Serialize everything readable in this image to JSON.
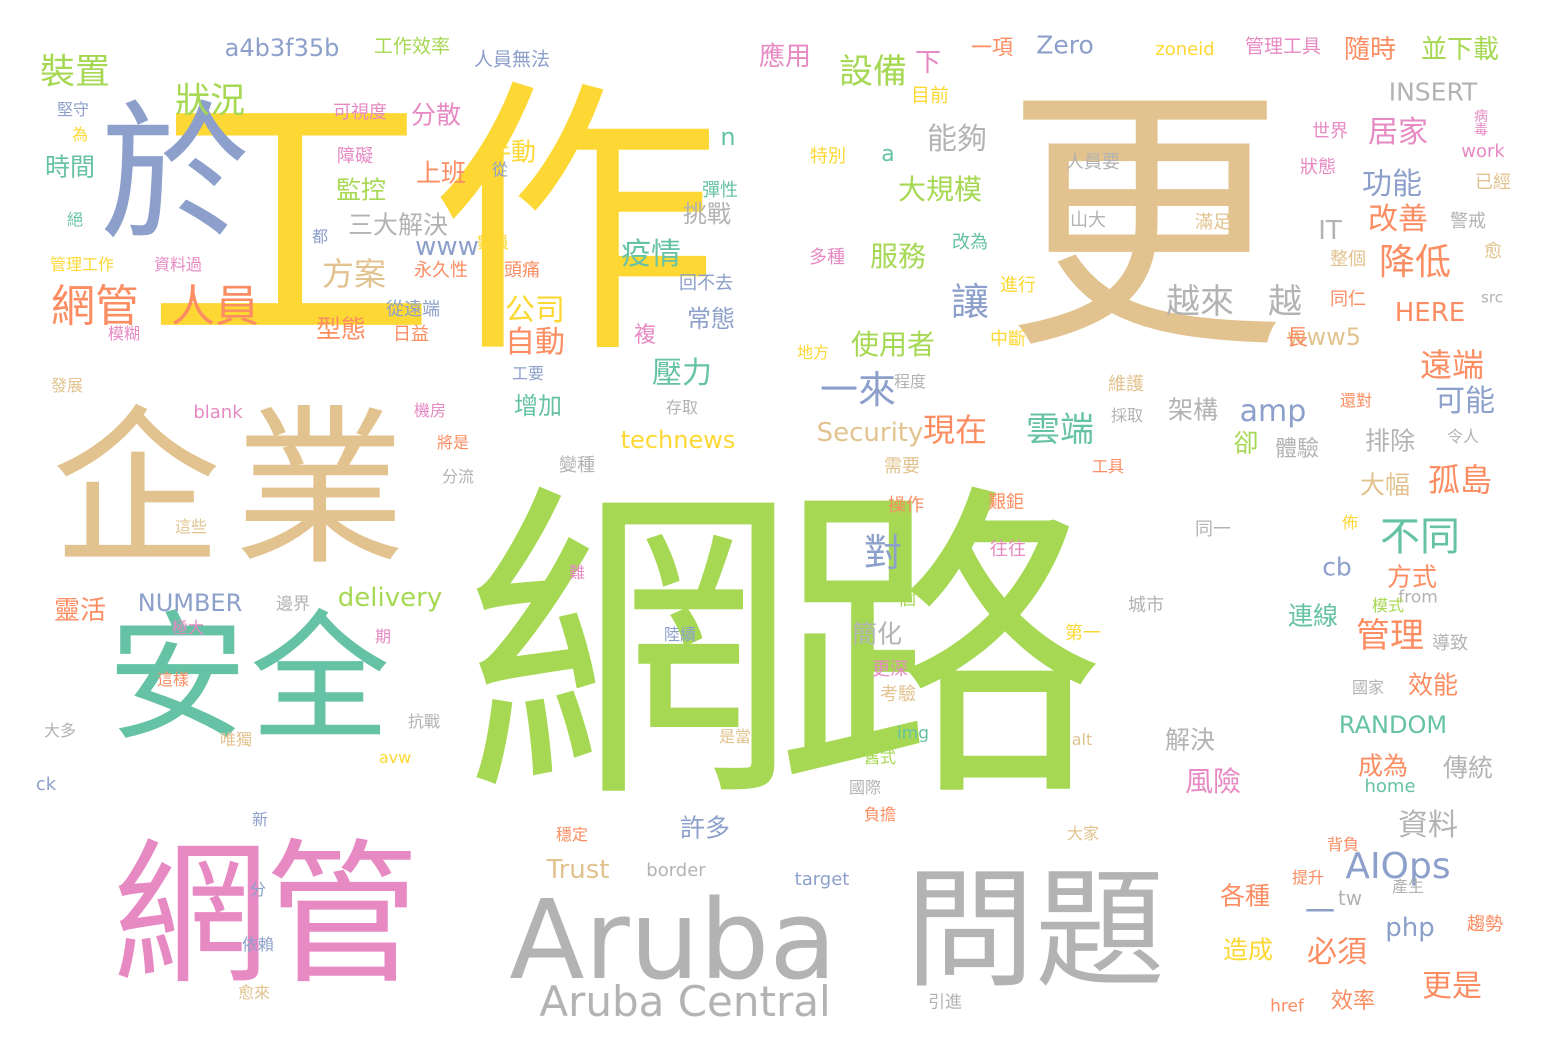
{
  "palette": {
    "yellow": "#fdd835",
    "tan": "#e2c38f",
    "green": "#a6d854",
    "teal": "#66c2a5",
    "pink": "#e78ac3",
    "gray": "#b3b3b3",
    "blue": "#8da0cb",
    "orange": "#fc8d62",
    "background": "#ffffff"
  },
  "words": [
    {
      "text": "網路",
      "color": "green",
      "orient": "h",
      "icon": null
    },
    {
      "text": "工作",
      "color": "yellow",
      "orient": "h"
    },
    {
      "text": "更",
      "color": "tan",
      "orient": "h"
    },
    {
      "text": "企業",
      "color": "tan",
      "orient": "h"
    },
    {
      "text": "安全",
      "color": "teal",
      "orient": "h"
    },
    {
      "text": "網管",
      "color": "pink",
      "orient": "h"
    },
    {
      "text": "Aruba",
      "color": "gray",
      "orient": "h"
    },
    {
      "text": "問題",
      "color": "gray",
      "orient": "h"
    },
    {
      "text": "於",
      "color": "blue",
      "orient": "h"
    },
    {
      "text": "Aruba Central",
      "color": "gray",
      "orient": "h"
    },
    {
      "text": "一",
      "color": "blue",
      "orient": "h"
    },
    {
      "text": "AIOps",
      "color": "blue",
      "orient": "h"
    },
    {
      "text": "網管",
      "color": "orange",
      "orient": "h"
    },
    {
      "text": "人員",
      "color": "orange",
      "orient": "h"
    },
    {
      "text": "裝置",
      "color": "green",
      "orient": "h"
    },
    {
      "text": "狀況",
      "color": "green",
      "orient": "h"
    },
    {
      "text": "a4b3f35b",
      "color": "blue",
      "orient": "h"
    },
    {
      "text": "工作效率",
      "color": "green",
      "orient": "h"
    },
    {
      "text": "人員無法",
      "color": "blue",
      "orient": "h"
    },
    {
      "text": "應用",
      "color": "pink",
      "orient": "h"
    },
    {
      "text": "設備",
      "color": "green",
      "orient": "h"
    },
    {
      "text": "下",
      "color": "pink",
      "orient": "h"
    },
    {
      "text": "一項",
      "color": "orange",
      "orient": "h"
    },
    {
      "text": "Zero",
      "color": "blue",
      "orient": "h"
    },
    {
      "text": "zoneid",
      "color": "yellow",
      "orient": "h"
    },
    {
      "text": "管理工具",
      "color": "pink",
      "orient": "h"
    },
    {
      "text": "隨時",
      "color": "orange",
      "orient": "h"
    },
    {
      "text": "並下載",
      "color": "green",
      "orient": "h"
    },
    {
      "text": "INSERT",
      "color": "gray",
      "orient": "h"
    },
    {
      "text": "目前",
      "color": "yellow",
      "orient": "h"
    },
    {
      "text": "能夠",
      "color": "gray",
      "orient": "h"
    },
    {
      "text": "居家",
      "color": "pink",
      "orient": "h"
    },
    {
      "text": "功能",
      "color": "blue",
      "orient": "h"
    },
    {
      "text": "病毒",
      "color": "pink",
      "orient": "v"
    },
    {
      "text": "work",
      "color": "pink",
      "orient": "h"
    },
    {
      "text": "已經",
      "color": "tan",
      "orient": "h"
    },
    {
      "text": "世界",
      "color": "pink",
      "orient": "h"
    },
    {
      "text": "狀態",
      "color": "pink",
      "orient": "h"
    },
    {
      "text": "人員要",
      "color": "gray",
      "orient": "h"
    },
    {
      "text": "山大",
      "color": "gray",
      "orient": "h"
    },
    {
      "text": "滿足",
      "color": "tan",
      "orient": "h"
    },
    {
      "text": "警戒",
      "color": "gray",
      "orient": "h"
    },
    {
      "text": "愈",
      "color": "tan",
      "orient": "h"
    },
    {
      "text": "整個",
      "color": "tan",
      "orient": "h"
    },
    {
      "text": "同仁",
      "color": "orange",
      "orient": "h"
    },
    {
      "text": "src",
      "color": "gray",
      "orient": "h"
    },
    {
      "text": "HERE",
      "color": "orange",
      "orient": "h"
    },
    {
      "text": "www5",
      "color": "tan",
      "orient": "h"
    },
    {
      "text": "遠端",
      "color": "orange",
      "orient": "h"
    },
    {
      "text": "可能",
      "color": "blue",
      "orient": "h"
    },
    {
      "text": "降低",
      "color": "orange",
      "orient": "h"
    },
    {
      "text": "改善",
      "color": "orange",
      "orient": "h"
    },
    {
      "text": "IT",
      "color": "gray",
      "orient": "h"
    },
    {
      "text": "越來",
      "color": "gray",
      "orient": "h"
    },
    {
      "text": "越",
      "color": "gray",
      "orient": "h"
    },
    {
      "text": "讓",
      "color": "blue",
      "orient": "h"
    },
    {
      "text": "大規模",
      "color": "green",
      "orient": "h"
    },
    {
      "text": "服務",
      "color": "green",
      "orient": "h"
    },
    {
      "text": "使用者",
      "color": "green",
      "orient": "h"
    },
    {
      "text": "一來",
      "color": "blue",
      "orient": "h"
    },
    {
      "text": "現在",
      "color": "orange",
      "orient": "h"
    },
    {
      "text": "雲端",
      "color": "teal",
      "orient": "h"
    },
    {
      "text": "amp",
      "color": "blue",
      "orient": "h"
    },
    {
      "text": "架構",
      "color": "gray",
      "orient": "h"
    },
    {
      "text": "卻",
      "color": "green",
      "orient": "h"
    },
    {
      "text": "體驗",
      "color": "gray",
      "orient": "h"
    },
    {
      "text": "排除",
      "color": "gray",
      "orient": "h"
    },
    {
      "text": "孤島",
      "color": "orange",
      "orient": "h"
    },
    {
      "text": "大幅",
      "color": "tan",
      "orient": "h"
    },
    {
      "text": "不同",
      "color": "teal",
      "orient": "h"
    },
    {
      "text": "對",
      "color": "blue",
      "orient": "h"
    },
    {
      "text": "方式",
      "color": "orange",
      "orient": "h"
    },
    {
      "text": "管理",
      "color": "orange",
      "orient": "h"
    },
    {
      "text": "連線",
      "color": "teal",
      "orient": "h"
    },
    {
      "text": "cb",
      "color": "blue",
      "orient": "h"
    },
    {
      "text": "簡化",
      "color": "gray",
      "orient": "h"
    },
    {
      "text": "一個",
      "color": "green",
      "orient": "h"
    },
    {
      "text": "第一",
      "color": "yellow",
      "orient": "h"
    },
    {
      "text": "from",
      "color": "gray",
      "orient": "h"
    },
    {
      "text": "模式",
      "color": "green",
      "orient": "h"
    },
    {
      "text": "導致",
      "color": "gray",
      "orient": "h"
    },
    {
      "text": "城市",
      "color": "gray",
      "orient": "h"
    },
    {
      "text": "同一",
      "color": "gray",
      "orient": "h"
    },
    {
      "text": "更深",
      "color": "pink",
      "orient": "h"
    },
    {
      "text": "考驗",
      "color": "tan",
      "orient": "h"
    },
    {
      "text": "效能",
      "color": "orange",
      "orient": "h"
    },
    {
      "text": "國家",
      "color": "gray",
      "orient": "h"
    },
    {
      "text": "RANDOM",
      "color": "teal",
      "orient": "h"
    },
    {
      "text": "解決",
      "color": "gray",
      "orient": "h"
    },
    {
      "text": "傳統",
      "color": "gray",
      "orient": "h"
    },
    {
      "text": "成為",
      "color": "orange",
      "orient": "h"
    },
    {
      "text": "風險",
      "color": "pink",
      "orient": "h"
    },
    {
      "text": "資料",
      "color": "gray",
      "orient": "h"
    },
    {
      "text": "home",
      "color": "teal",
      "orient": "h"
    },
    {
      "text": "tw",
      "color": "gray",
      "orient": "h"
    },
    {
      "text": "各種",
      "color": "orange",
      "orient": "h"
    },
    {
      "text": "php",
      "color": "blue",
      "orient": "h"
    },
    {
      "text": "必須",
      "color": "orange",
      "orient": "h"
    },
    {
      "text": "造成",
      "color": "yellow",
      "orient": "h"
    },
    {
      "text": "更是",
      "color": "orange",
      "orient": "h"
    },
    {
      "text": "效率",
      "color": "orange",
      "orient": "h"
    },
    {
      "text": "href",
      "color": "orange",
      "orient": "h"
    },
    {
      "text": "趨勢",
      "color": "orange",
      "orient": "h"
    },
    {
      "text": "產生",
      "color": "gray",
      "orient": "h"
    },
    {
      "text": "背負",
      "color": "orange",
      "orient": "h"
    },
    {
      "text": "提升",
      "color": "orange",
      "orient": "h"
    },
    {
      "text": "引進",
      "color": "gray",
      "orient": "h"
    },
    {
      "text": "Security",
      "color": "tan",
      "orient": "h"
    },
    {
      "text": "technews",
      "color": "yellow",
      "orient": "h"
    },
    {
      "text": "壓力",
      "color": "teal",
      "orient": "h"
    },
    {
      "text": "增加",
      "color": "teal",
      "orient": "h"
    },
    {
      "text": "自動",
      "color": "orange",
      "orient": "h"
    },
    {
      "text": "公司",
      "color": "yellow",
      "orient": "h"
    },
    {
      "text": "疫情",
      "color": "teal",
      "orient": "h"
    },
    {
      "text": "回不去",
      "color": "blue",
      "orient": "h"
    },
    {
      "text": "常態",
      "color": "blue",
      "orient": "h"
    },
    {
      "text": "挑戰",
      "color": "gray",
      "orient": "h"
    },
    {
      "text": "複",
      "color": "pink",
      "orient": "h"
    },
    {
      "text": "長",
      "color": "orange",
      "orient": "h"
    },
    {
      "text": "n",
      "color": "teal",
      "orient": "h"
    },
    {
      "text": "a",
      "color": "teal",
      "orient": "h"
    },
    {
      "text": "手動",
      "color": "yellow",
      "orient": "h"
    },
    {
      "text": "彈性",
      "color": "teal",
      "orient": "h"
    },
    {
      "text": "特別",
      "color": "yellow",
      "orient": "h"
    },
    {
      "text": "多種",
      "color": "pink",
      "orient": "h"
    },
    {
      "text": "改為",
      "color": "teal",
      "orient": "h"
    },
    {
      "text": "進行",
      "color": "yellow",
      "orient": "h"
    },
    {
      "text": "中斷",
      "color": "yellow",
      "orient": "h"
    },
    {
      "text": "地方",
      "color": "yellow",
      "orient": "h"
    },
    {
      "text": "程度",
      "color": "gray",
      "orient": "h"
    },
    {
      "text": "維護",
      "color": "tan",
      "orient": "h"
    },
    {
      "text": "採取",
      "color": "gray",
      "orient": "h"
    },
    {
      "text": "還對",
      "color": "orange",
      "orient": "h"
    },
    {
      "text": "令人",
      "color": "gray",
      "orient": "h"
    },
    {
      "text": "工具",
      "color": "orange",
      "orient": "h"
    },
    {
      "text": "存取",
      "color": "gray",
      "orient": "h"
    },
    {
      "text": "需要",
      "color": "tan",
      "orient": "h"
    },
    {
      "text": "操作",
      "color": "orange",
      "orient": "h"
    },
    {
      "text": "艱鉅",
      "color": "orange",
      "orient": "h"
    },
    {
      "text": "往往",
      "color": "pink",
      "orient": "h"
    },
    {
      "text": "佈",
      "color": "yellow",
      "orient": "h"
    },
    {
      "text": "變種",
      "color": "gray",
      "orient": "h"
    },
    {
      "text": "分散",
      "color": "pink",
      "orient": "h"
    },
    {
      "text": "上班",
      "color": "orange",
      "orient": "h"
    },
    {
      "text": "監控",
      "color": "green",
      "orient": "h"
    },
    {
      "text": "三大解決",
      "color": "gray",
      "orient": "h"
    },
    {
      "text": "方案",
      "color": "tan",
      "orient": "h"
    },
    {
      "text": "www",
      "color": "blue",
      "orient": "h"
    },
    {
      "text": "型態",
      "color": "orange",
      "orient": "h"
    },
    {
      "text": "日益",
      "color": "orange",
      "orient": "h"
    },
    {
      "text": "從遠端",
      "color": "blue",
      "orient": "h"
    },
    {
      "text": "永久性",
      "color": "orange",
      "orient": "h"
    },
    {
      "text": "頭痛",
      "color": "orange",
      "orient": "h"
    },
    {
      "text": "數員",
      "color": "yellow",
      "orient": "h"
    },
    {
      "text": "都",
      "color": "blue",
      "orient": "h"
    },
    {
      "text": "時間",
      "color": "teal",
      "orient": "h"
    },
    {
      "text": "可視度",
      "color": "pink",
      "orient": "h"
    },
    {
      "text": "障礙",
      "color": "pink",
      "orient": "h"
    },
    {
      "text": "從",
      "color": "blue",
      "orient": "h"
    },
    {
      "text": "堅守",
      "color": "blue",
      "orient": "h"
    },
    {
      "text": "為",
      "color": "yellow",
      "orient": "h"
    },
    {
      "text": "絕",
      "color": "teal",
      "orient": "h"
    },
    {
      "text": "管理工作",
      "color": "yellow",
      "orient": "h"
    },
    {
      "text": "資料過",
      "color": "pink",
      "orient": "h"
    },
    {
      "text": "模糊",
      "color": "pink",
      "orient": "h"
    },
    {
      "text": "工要",
      "color": "blue",
      "orient": "h"
    },
    {
      "text": "發展",
      "color": "tan",
      "orient": "h"
    },
    {
      "text": "blank",
      "color": "pink",
      "orient": "h"
    },
    {
      "text": "機房",
      "color": "pink",
      "orient": "h"
    },
    {
      "text": "將是",
      "color": "orange",
      "orient": "h"
    },
    {
      "text": "分流",
      "color": "gray",
      "orient": "h"
    },
    {
      "text": "這些",
      "color": "tan",
      "orient": "h"
    },
    {
      "text": "delivery",
      "color": "green",
      "orient": "h"
    },
    {
      "text": "NUMBER",
      "color": "blue",
      "orient": "h"
    },
    {
      "text": "靈活",
      "color": "orange",
      "orient": "h"
    },
    {
      "text": "邊界",
      "color": "gray",
      "orient": "h"
    },
    {
      "text": "期",
      "color": "pink",
      "orient": "h"
    },
    {
      "text": "極大",
      "color": "pink",
      "orient": "h"
    },
    {
      "text": "難",
      "color": "pink",
      "orient": "h"
    },
    {
      "text": "陸續",
      "color": "blue",
      "orient": "h"
    },
    {
      "text": "這樣",
      "color": "orange",
      "orient": "h"
    },
    {
      "text": "抗戰",
      "color": "gray",
      "orient": "h"
    },
    {
      "text": "大多",
      "color": "gray",
      "orient": "h"
    },
    {
      "text": "唯獨",
      "color": "tan",
      "orient": "h"
    },
    {
      "text": "avw",
      "color": "yellow",
      "orient": "h"
    },
    {
      "text": "img",
      "color": "teal",
      "orient": "h"
    },
    {
      "text": "是當",
      "color": "tan",
      "orient": "h"
    },
    {
      "text": "舊式",
      "color": "green",
      "orient": "h"
    },
    {
      "text": "alt",
      "color": "tan",
      "orient": "h"
    },
    {
      "text": "ck",
      "color": "blue",
      "orient": "h"
    },
    {
      "text": "國際",
      "color": "gray",
      "orient": "h"
    },
    {
      "text": "許多",
      "color": "blue",
      "orient": "h"
    },
    {
      "text": "穩定",
      "color": "orange",
      "orient": "h"
    },
    {
      "text": "負擔",
      "color": "orange",
      "orient": "h"
    },
    {
      "text": "大家",
      "color": "tan",
      "orient": "h"
    },
    {
      "text": "新",
      "color": "blue",
      "orient": "h"
    },
    {
      "text": "Trust",
      "color": "tan",
      "orient": "h"
    },
    {
      "text": "border",
      "color": "gray",
      "orient": "h"
    },
    {
      "text": "target",
      "color": "blue",
      "orient": "h"
    },
    {
      "text": "分",
      "color": "blue",
      "orient": "h"
    },
    {
      "text": "依賴",
      "color": "blue",
      "orient": "h"
    },
    {
      "text": "愈來",
      "color": "tan",
      "orient": "h"
    }
  ]
}
